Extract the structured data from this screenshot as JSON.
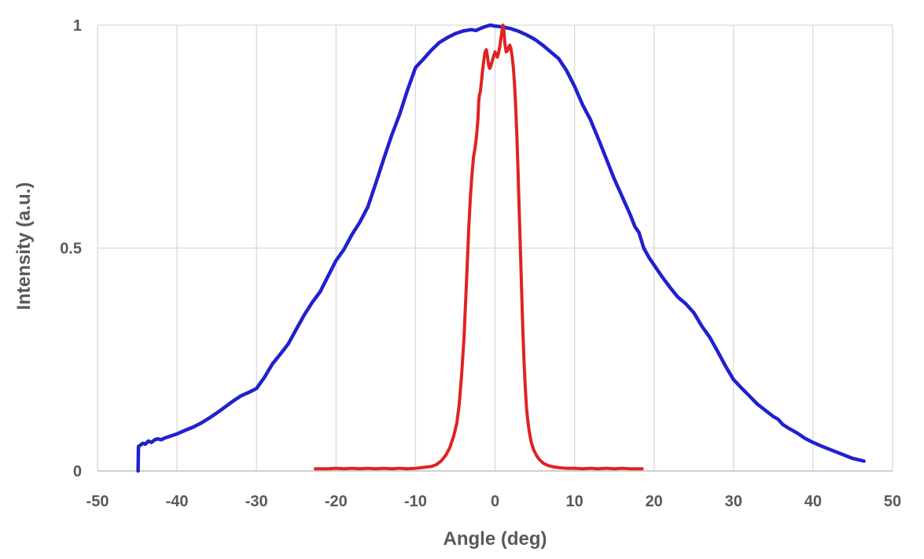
{
  "chart_data": {
    "type": "line",
    "title": "",
    "xlabel": "Angle (deg)",
    "ylabel": "Intensity (a.u.)",
    "xlim": [
      -50,
      50
    ],
    "ylim": [
      0,
      1
    ],
    "x_ticks": [
      -50,
      -40,
      -30,
      -20,
      -10,
      0,
      10,
      20,
      30,
      40,
      50
    ],
    "x_tick_labels": [
      "-50",
      "-40",
      "-30",
      "-20",
      "-10",
      "0",
      "10",
      "20",
      "30",
      "40",
      "50"
    ],
    "y_ticks": [
      0,
      0.5,
      1
    ],
    "y_tick_labels": [
      "0",
      "0.5",
      "1"
    ],
    "grid": true,
    "legend_position": "none",
    "series": [
      {
        "name": "blue-curve",
        "color": "#2121cd",
        "width": 4.5,
        "points": [
          [
            -44.9,
            0.0
          ],
          [
            -44.85,
            0.055
          ],
          [
            -44.6,
            0.058
          ],
          [
            -44.3,
            0.062
          ],
          [
            -44.0,
            0.06
          ],
          [
            -43.6,
            0.067
          ],
          [
            -43.2,
            0.064
          ],
          [
            -42.8,
            0.07
          ],
          [
            -42.4,
            0.072
          ],
          [
            -42.0,
            0.07
          ],
          [
            -41.5,
            0.074
          ],
          [
            -41.0,
            0.077
          ],
          [
            -40.5,
            0.08
          ],
          [
            -40.0,
            0.083
          ],
          [
            -39.0,
            0.091
          ],
          [
            -38.0,
            0.098
          ],
          [
            -37.0,
            0.107
          ],
          [
            -36.0,
            0.118
          ],
          [
            -35.0,
            0.13
          ],
          [
            -34.0,
            0.143
          ],
          [
            -33.0,
            0.156
          ],
          [
            -32.0,
            0.168
          ],
          [
            -31.0,
            0.176
          ],
          [
            -30.0,
            0.185
          ],
          [
            -29.0,
            0.21
          ],
          [
            -28.0,
            0.24
          ],
          [
            -27.0,
            0.262
          ],
          [
            -26.0,
            0.285
          ],
          [
            -25.0,
            0.318
          ],
          [
            -24.0,
            0.35
          ],
          [
            -23.0,
            0.378
          ],
          [
            -22.0,
            0.402
          ],
          [
            -21.0,
            0.437
          ],
          [
            -20.0,
            0.472
          ],
          [
            -19.0,
            0.497
          ],
          [
            -18.0,
            0.53
          ],
          [
            -17.0,
            0.558
          ],
          [
            -16.0,
            0.592
          ],
          [
            -15.0,
            0.645
          ],
          [
            -14.0,
            0.7
          ],
          [
            -13.0,
            0.753
          ],
          [
            -12.0,
            0.8
          ],
          [
            -11.0,
            0.855
          ],
          [
            -10.0,
            0.905
          ],
          [
            -9.0,
            0.924
          ],
          [
            -8.0,
            0.944
          ],
          [
            -7.0,
            0.961
          ],
          [
            -6.0,
            0.972
          ],
          [
            -5.0,
            0.981
          ],
          [
            -4.0,
            0.987
          ],
          [
            -3.0,
            0.99
          ],
          [
            -2.4,
            0.988
          ],
          [
            -1.8,
            0.993
          ],
          [
            -1.2,
            0.997
          ],
          [
            -0.6,
            1.0
          ],
          [
            0.0,
            0.998
          ],
          [
            0.6,
            0.997
          ],
          [
            1.2,
            0.995
          ],
          [
            2.0,
            0.992
          ],
          [
            3.0,
            0.986
          ],
          [
            4.0,
            0.978
          ],
          [
            5.0,
            0.968
          ],
          [
            6.0,
            0.955
          ],
          [
            7.0,
            0.94
          ],
          [
            8.0,
            0.925
          ],
          [
            9.0,
            0.898
          ],
          [
            10.0,
            0.863
          ],
          [
            11.0,
            0.822
          ],
          [
            12.0,
            0.788
          ],
          [
            13.0,
            0.745
          ],
          [
            14.0,
            0.7
          ],
          [
            15.0,
            0.655
          ],
          [
            16.0,
            0.615
          ],
          [
            17.0,
            0.575
          ],
          [
            17.6,
            0.548
          ],
          [
            18.1,
            0.535
          ],
          [
            18.7,
            0.5
          ],
          [
            19.4,
            0.478
          ],
          [
            20.0,
            0.462
          ],
          [
            21.0,
            0.436
          ],
          [
            22.0,
            0.412
          ],
          [
            23.0,
            0.39
          ],
          [
            24.0,
            0.375
          ],
          [
            25.0,
            0.355
          ],
          [
            26.0,
            0.325
          ],
          [
            27.0,
            0.3
          ],
          [
            28.0,
            0.268
          ],
          [
            29.0,
            0.235
          ],
          [
            30.0,
            0.205
          ],
          [
            31.0,
            0.186
          ],
          [
            32.0,
            0.168
          ],
          [
            33.0,
            0.15
          ],
          [
            34.0,
            0.136
          ],
          [
            35.0,
            0.122
          ],
          [
            35.6,
            0.116
          ],
          [
            36.2,
            0.104
          ],
          [
            37.0,
            0.095
          ],
          [
            38.0,
            0.085
          ],
          [
            39.0,
            0.073
          ],
          [
            40.0,
            0.064
          ],
          [
            41.0,
            0.056
          ],
          [
            42.0,
            0.049
          ],
          [
            43.0,
            0.042
          ],
          [
            44.0,
            0.035
          ],
          [
            45.0,
            0.028
          ],
          [
            46.0,
            0.024
          ],
          [
            46.4,
            0.022
          ]
        ]
      },
      {
        "name": "red-curve",
        "color": "#e02222",
        "width": 4,
        "points": [
          [
            -22.6,
            0.005
          ],
          [
            -21.0,
            0.005
          ],
          [
            -20.0,
            0.006
          ],
          [
            -19.0,
            0.005
          ],
          [
            -18.0,
            0.006
          ],
          [
            -17.0,
            0.005
          ],
          [
            -16.0,
            0.006
          ],
          [
            -15.0,
            0.005
          ],
          [
            -14.0,
            0.006
          ],
          [
            -13.0,
            0.005
          ],
          [
            -12.0,
            0.006
          ],
          [
            -11.0,
            0.005
          ],
          [
            -10.0,
            0.006
          ],
          [
            -9.0,
            0.008
          ],
          [
            -8.0,
            0.01
          ],
          [
            -7.4,
            0.014
          ],
          [
            -6.8,
            0.022
          ],
          [
            -6.2,
            0.035
          ],
          [
            -5.7,
            0.052
          ],
          [
            -5.2,
            0.078
          ],
          [
            -4.8,
            0.108
          ],
          [
            -4.5,
            0.15
          ],
          [
            -4.2,
            0.215
          ],
          [
            -3.9,
            0.3
          ],
          [
            -3.7,
            0.38
          ],
          [
            -3.5,
            0.46
          ],
          [
            -3.3,
            0.545
          ],
          [
            -3.1,
            0.615
          ],
          [
            -2.9,
            0.665
          ],
          [
            -2.7,
            0.705
          ],
          [
            -2.5,
            0.725
          ],
          [
            -2.3,
            0.755
          ],
          [
            -2.15,
            0.79
          ],
          [
            -2.05,
            0.83
          ],
          [
            -1.95,
            0.845
          ],
          [
            -1.85,
            0.85
          ],
          [
            -1.7,
            0.875
          ],
          [
            -1.55,
            0.9
          ],
          [
            -1.4,
            0.922
          ],
          [
            -1.25,
            0.94
          ],
          [
            -1.1,
            0.945
          ],
          [
            -0.95,
            0.93
          ],
          [
            -0.8,
            0.91
          ],
          [
            -0.65,
            0.903
          ],
          [
            -0.5,
            0.91
          ],
          [
            -0.35,
            0.92
          ],
          [
            -0.15,
            0.932
          ],
          [
            0.0,
            0.94
          ],
          [
            0.15,
            0.935
          ],
          [
            0.3,
            0.928
          ],
          [
            0.45,
            0.938
          ],
          [
            0.6,
            0.952
          ],
          [
            0.75,
            0.972
          ],
          [
            0.9,
            0.99
          ],
          [
            1.0,
            1.0
          ],
          [
            1.1,
            0.99
          ],
          [
            1.25,
            0.958
          ],
          [
            1.4,
            0.94
          ],
          [
            1.55,
            0.942
          ],
          [
            1.7,
            0.95
          ],
          [
            1.85,
            0.955
          ],
          [
            2.0,
            0.948
          ],
          [
            2.15,
            0.93
          ],
          [
            2.3,
            0.905
          ],
          [
            2.45,
            0.868
          ],
          [
            2.6,
            0.815
          ],
          [
            2.75,
            0.75
          ],
          [
            2.9,
            0.67
          ],
          [
            3.05,
            0.58
          ],
          [
            3.2,
            0.49
          ],
          [
            3.35,
            0.4
          ],
          [
            3.5,
            0.315
          ],
          [
            3.65,
            0.245
          ],
          [
            3.8,
            0.19
          ],
          [
            3.95,
            0.145
          ],
          [
            4.1,
            0.115
          ],
          [
            4.3,
            0.088
          ],
          [
            4.55,
            0.065
          ],
          [
            4.85,
            0.048
          ],
          [
            5.2,
            0.035
          ],
          [
            5.6,
            0.025
          ],
          [
            6.1,
            0.017
          ],
          [
            6.7,
            0.012
          ],
          [
            7.4,
            0.009
          ],
          [
            8.2,
            0.007
          ],
          [
            9.0,
            0.006
          ],
          [
            10.0,
            0.006
          ],
          [
            11.0,
            0.005
          ],
          [
            12.0,
            0.006
          ],
          [
            13.0,
            0.005
          ],
          [
            14.0,
            0.006
          ],
          [
            15.0,
            0.005
          ],
          [
            16.0,
            0.006
          ],
          [
            17.0,
            0.005
          ],
          [
            18.0,
            0.005
          ],
          [
            18.5,
            0.005
          ]
        ]
      }
    ]
  },
  "style": {
    "text_color": "#595959",
    "grid_color": "#d9d9d9",
    "axis_color": "#bfbfbf",
    "background": "#ffffff",
    "tick_font_size": 20,
    "title_font_size": 24
  }
}
